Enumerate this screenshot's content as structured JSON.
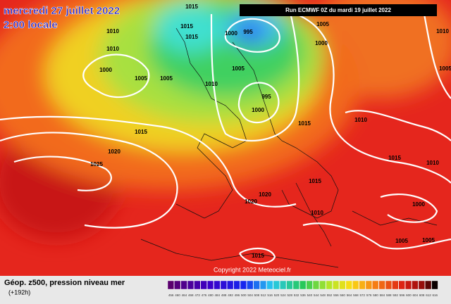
{
  "header": {
    "date": "mercredi 27 juillet 2022",
    "time": "2:00 locale",
    "run": "Run ECMWF 0Z du mardi 19 juillet 2022"
  },
  "footer": {
    "title": "Géop. z500, pression niveau mer",
    "lead": "(+192h)",
    "copyright": "Copyright 2022 Meteociel.fr"
  },
  "isobar_labels": [
    1015,
    1010,
    1010,
    1015,
    1015,
    1000,
    995,
    1005,
    1000,
    1010,
    1000,
    1005,
    1005,
    1005,
    1010,
    995,
    1000,
    1015,
    1010,
    1015,
    1020,
    1025,
    1015,
    1020,
    1020,
    1015,
    1010,
    1000,
    1005,
    1005,
    1015,
    1010,
    1005
  ],
  "scale": {
    "values": [
      456,
      460,
      464,
      468,
      472,
      476,
      480,
      484,
      488,
      492,
      496,
      500,
      504,
      508,
      512,
      516,
      520,
      524,
      528,
      532,
      536,
      540,
      544,
      548,
      552,
      556,
      560,
      564,
      568,
      572,
      576,
      580,
      584,
      588,
      592,
      596,
      600,
      604,
      608,
      612,
      616
    ]
  }
}
